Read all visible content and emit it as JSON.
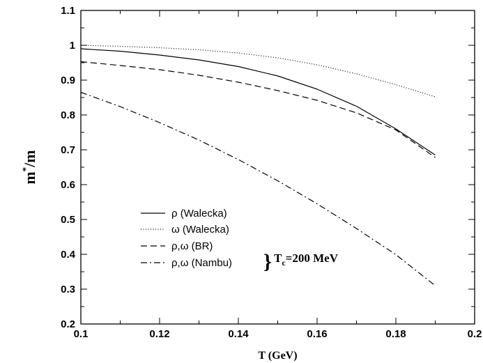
{
  "chart_data": {
    "type": "line",
    "title": "",
    "xlabel": "T (GeV)",
    "ylabel_main": "m",
    "ylabel_sup": "*",
    "ylabel_tail": "/m",
    "xlim": [
      0.1,
      0.2
    ],
    "ylim": [
      0.2,
      1.1
    ],
    "xticks": [
      "0.1",
      "0.12",
      "0.14",
      "0.16",
      "0.18",
      "0.2"
    ],
    "yticks": [
      "0.2",
      "0.3",
      "0.4",
      "0.5",
      "0.6",
      "0.7",
      "0.8",
      "0.9",
      "1",
      "1.1"
    ],
    "grid": false,
    "legend_position": "lower-left",
    "series": [
      {
        "name": "ρ (Walecka)",
        "style": "solid",
        "x": [
          0.1,
          0.11,
          0.12,
          0.13,
          0.14,
          0.15,
          0.16,
          0.17,
          0.18,
          0.19
        ],
        "y": [
          0.99,
          0.983,
          0.972,
          0.958,
          0.939,
          0.912,
          0.874,
          0.825,
          0.76,
          0.685
        ]
      },
      {
        "name": "ω (Walecka)",
        "style": "dotted",
        "x": [
          0.1,
          0.11,
          0.12,
          0.13,
          0.14,
          0.15,
          0.16,
          0.17,
          0.18,
          0.19
        ],
        "y": [
          1.0,
          0.997,
          0.993,
          0.987,
          0.978,
          0.964,
          0.944,
          0.918,
          0.887,
          0.852
        ]
      },
      {
        "name": "ρ,ω (BR)",
        "style": "dashed",
        "x": [
          0.1,
          0.11,
          0.12,
          0.13,
          0.14,
          0.15,
          0.16,
          0.17,
          0.18,
          0.19
        ],
        "y": [
          0.953,
          0.942,
          0.93,
          0.914,
          0.894,
          0.87,
          0.842,
          0.806,
          0.757,
          0.678
        ]
      },
      {
        "name": "ρ,ω (Nambu)",
        "style": "dashdot",
        "x": [
          0.1,
          0.11,
          0.12,
          0.13,
          0.14,
          0.15,
          0.16,
          0.17,
          0.18,
          0.19
        ],
        "y": [
          0.865,
          0.824,
          0.778,
          0.728,
          0.672,
          0.611,
          0.545,
          0.474,
          0.399,
          0.31
        ]
      }
    ],
    "annotation": {
      "brace": "}",
      "text_main": "T",
      "text_sub": "c",
      "text_tail": "=200 MeV"
    }
  },
  "colors": {
    "line": "#000000",
    "background": "#ffffff"
  }
}
